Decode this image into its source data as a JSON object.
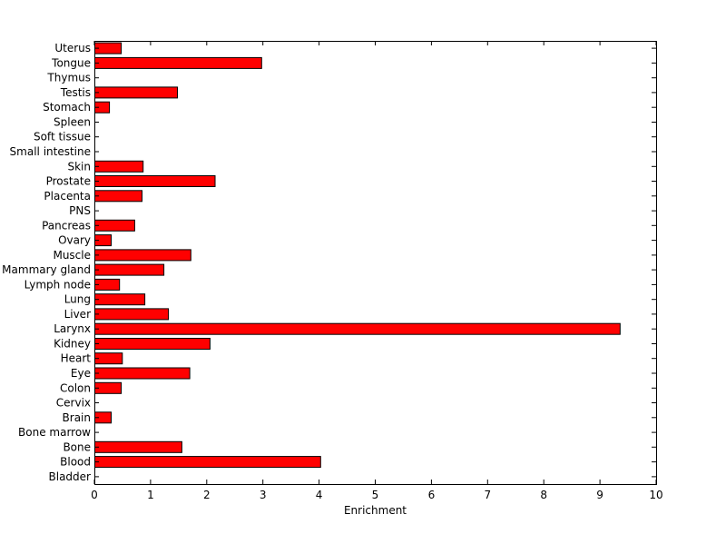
{
  "chart_data": {
    "type": "bar",
    "orientation": "horizontal",
    "title": "",
    "xlabel": "Enrichment",
    "ylabel": "",
    "xlim": [
      0,
      10
    ],
    "x_ticks": [
      0,
      1,
      2,
      3,
      4,
      5,
      6,
      7,
      8,
      9,
      10
    ],
    "grid": false,
    "bar_color": "#ff0000",
    "bar_edge_color": "#000000",
    "categories": [
      "Bladder",
      "Blood",
      "Bone",
      "Bone marrow",
      "Brain",
      "Cervix",
      "Colon",
      "Eye",
      "Heart",
      "Kidney",
      "Larynx",
      "Liver",
      "Lung",
      "Lymph node",
      "Mammary gland",
      "Muscle",
      "Ovary",
      "Pancreas",
      "PNS",
      "Placenta",
      "Prostate",
      "Skin",
      "Small intestine",
      "Soft tissue",
      "Spleen",
      "Stomach",
      "Testis",
      "Thymus",
      "Tongue",
      "Uterus"
    ],
    "values": [
      0,
      4.02,
      1.55,
      0,
      0.29,
      0,
      0.47,
      1.69,
      0.49,
      2.05,
      9.35,
      1.31,
      0.89,
      0.44,
      1.23,
      1.71,
      0.29,
      0.71,
      0,
      0.84,
      2.14,
      0.86,
      0,
      0,
      0,
      0.26,
      1.47,
      0,
      2.97,
      0.47
    ]
  }
}
